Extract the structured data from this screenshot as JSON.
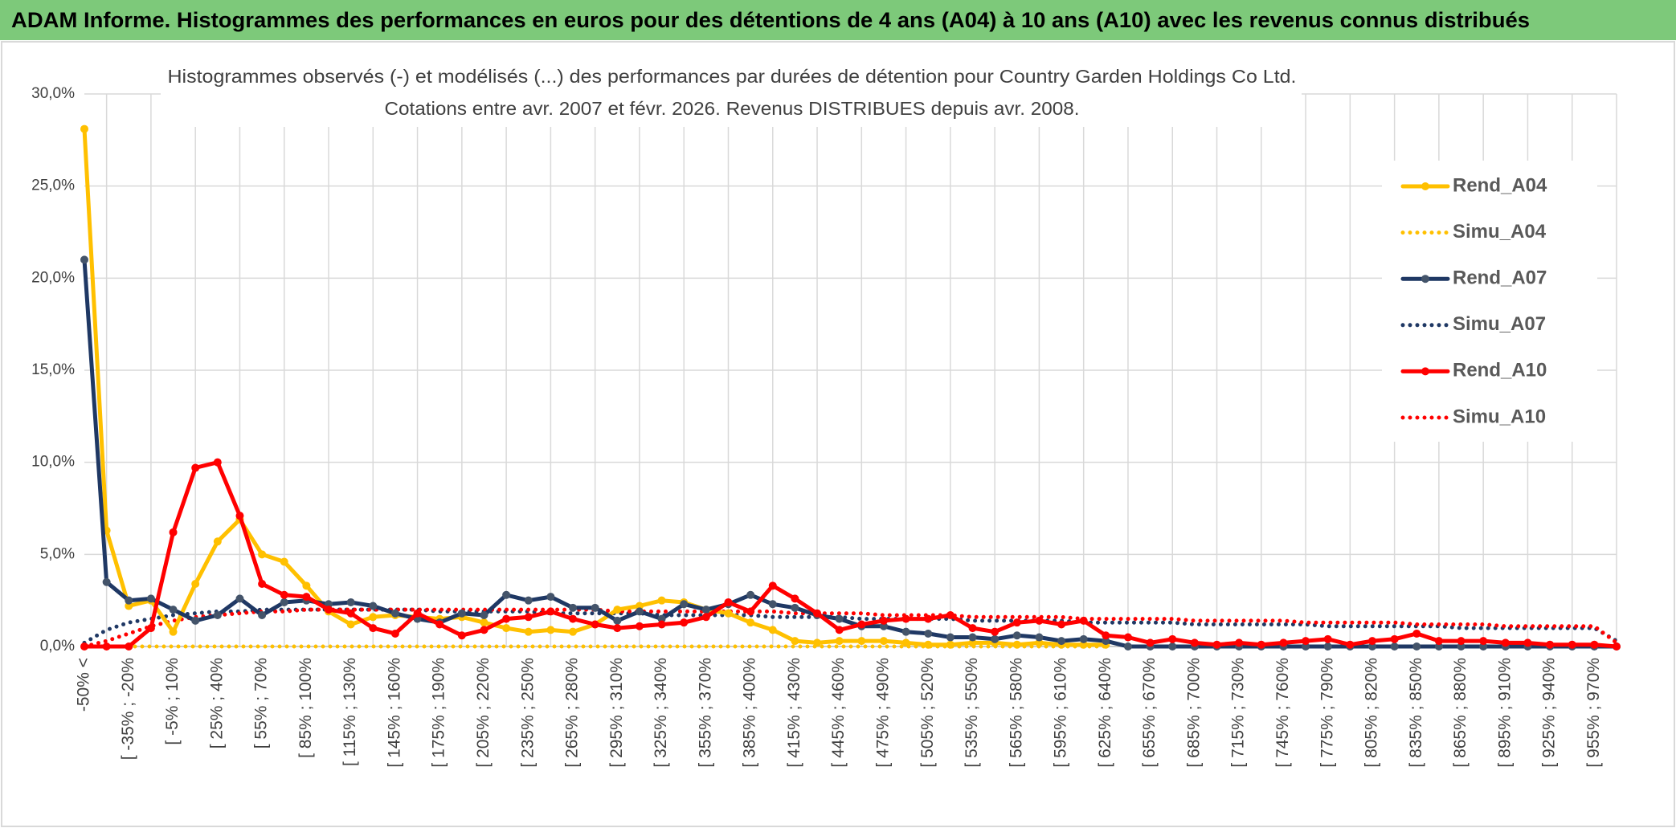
{
  "header": {
    "title": "ADAM Informe. Histogrammes des performances en euros pour des détentions de 4 ans (A04) à 10 ans (A10) avec les revenus connus distribués"
  },
  "chart_data": {
    "type": "line",
    "title": "Histogrammes observés (-) et modélisés (...) des performances par durées de détention pour Country Garden Holdings Co Ltd.",
    "subtitle": "Cotations entre avr. 2007 et févr. 2026. Revenus DISTRIBUES depuis avr. 2008.",
    "categories": [
      "-50% <",
      null,
      "[ -35% ; -20%",
      null,
      "[ -5% ; 10%",
      null,
      "[ 25% ; 40%",
      null,
      "[ 55% ; 70%",
      null,
      "[ 85% ; 100%",
      null,
      "[ 115% ; 130%",
      null,
      "[ 145% ; 160%",
      null,
      "[ 175% ; 190%",
      null,
      "[ 205% ; 220%",
      null,
      "[ 235% ; 250%",
      null,
      "[ 265% ; 280%",
      null,
      "[ 295% ; 310%",
      null,
      "[ 325% ; 340%",
      null,
      "[ 355% ; 370%",
      null,
      "[ 385% ; 400%",
      null,
      "[ 415% ; 430%",
      null,
      "[ 445% ; 460%",
      null,
      "[ 475% ; 490%",
      null,
      "[ 505% ; 520%",
      null,
      "[ 535% ; 550%",
      null,
      "[ 565% ; 580%",
      null,
      "[ 595% ; 610%",
      null,
      "[ 625% ; 640%",
      null,
      "[ 655% ; 670%",
      null,
      "[ 685% ; 700%",
      null,
      "[ 715% ; 730%",
      null,
      "[ 745% ; 760%",
      null,
      "[ 775% ; 790%",
      null,
      "[ 805% ; 820%",
      null,
      "[ 835% ; 850%",
      null,
      "[ 865% ; 880%",
      null,
      "[ 895% ; 910%",
      null,
      "[ 925% ; 940%",
      null,
      "[ 955% ; 970%",
      null
    ],
    "ylim": [
      0,
      30
    ],
    "yticks": [
      {
        "value": 0,
        "label": "0,0%"
      },
      {
        "value": 5,
        "label": "5,0%"
      },
      {
        "value": 10,
        "label": "10,0%"
      },
      {
        "value": 15,
        "label": "15,0%"
      },
      {
        "value": 20,
        "label": "20,0%"
      },
      {
        "value": 25,
        "label": "25,0%"
      },
      {
        "value": 30,
        "label": "30,0%"
      }
    ],
    "grid": true,
    "legend": "right",
    "series": [
      {
        "name": "Rend_A04",
        "color": "#ffc000",
        "style": "solid",
        "values": [
          28.1,
          6.3,
          2.2,
          2.5,
          0.8,
          3.4,
          5.7,
          6.9,
          5.0,
          4.6,
          3.3,
          1.9,
          1.2,
          1.6,
          1.7,
          1.6,
          1.5,
          1.6,
          1.3,
          1.0,
          0.8,
          0.9,
          0.8,
          1.2,
          2.0,
          2.2,
          2.5,
          2.4,
          2.0,
          1.8,
          1.3,
          0.9,
          0.3,
          0.2,
          0.3,
          0.3,
          0.3,
          0.2,
          0.1,
          0.1,
          0.2,
          0.2,
          0.1,
          0.2,
          0.1,
          0.1,
          0.1,
          null,
          null,
          null,
          null,
          null,
          null,
          null,
          null,
          null,
          null,
          null,
          null,
          null,
          null,
          null,
          null,
          null,
          null,
          null,
          null,
          null,
          null,
          null
        ]
      },
      {
        "name": "Simu_A04",
        "color": "#ffc000",
        "style": "dotted",
        "values": [
          0,
          0,
          0,
          0,
          0,
          0,
          0,
          0,
          0,
          0,
          0,
          0,
          0,
          0,
          0,
          0,
          0,
          0,
          0,
          0,
          0,
          0,
          0,
          0,
          0,
          0,
          0,
          0,
          0,
          0,
          0,
          0,
          0,
          0,
          0,
          0,
          0,
          0,
          0,
          0,
          0,
          0,
          0,
          0,
          0,
          0,
          0,
          null,
          null,
          null,
          null,
          null,
          null,
          null,
          null,
          null,
          null,
          null,
          null,
          null,
          null,
          null,
          null,
          null,
          null,
          null,
          null,
          null,
          null,
          null
        ]
      },
      {
        "name": "Rend_A07",
        "color": "#1f3864",
        "style": "solid",
        "values": [
          21.0,
          3.5,
          2.5,
          2.6,
          2.0,
          1.4,
          1.7,
          2.6,
          1.7,
          2.4,
          2.5,
          2.3,
          2.4,
          2.2,
          1.8,
          1.5,
          1.3,
          1.8,
          1.7,
          2.8,
          2.5,
          2.7,
          2.1,
          2.1,
          1.4,
          1.9,
          1.5,
          2.3,
          2.0,
          2.3,
          2.8,
          2.3,
          2.1,
          1.7,
          1.5,
          1.1,
          1.1,
          0.8,
          0.7,
          0.5,
          0.5,
          0.4,
          0.6,
          0.5,
          0.3,
          0.4,
          0.3,
          0,
          0,
          0,
          0,
          0,
          0,
          0,
          0,
          0,
          0,
          0,
          0,
          0,
          0,
          0,
          0,
          0,
          0,
          0,
          0,
          0,
          0,
          0
        ]
      },
      {
        "name": "Simu_A07",
        "color": "#1f3864",
        "style": "dotted",
        "values": [
          0.2,
          0.9,
          1.3,
          1.5,
          1.7,
          1.8,
          1.9,
          1.9,
          2.0,
          2.0,
          2.0,
          2.0,
          2.0,
          2.0,
          2.0,
          2.0,
          1.9,
          1.9,
          1.9,
          1.9,
          1.9,
          1.8,
          1.8,
          1.8,
          1.8,
          1.8,
          1.7,
          1.7,
          1.7,
          1.7,
          1.7,
          1.6,
          1.6,
          1.6,
          1.6,
          1.5,
          1.5,
          1.5,
          1.5,
          1.5,
          1.4,
          1.4,
          1.4,
          1.4,
          1.4,
          1.3,
          1.3,
          1.3,
          1.3,
          1.3,
          1.2,
          1.2,
          1.2,
          1.2,
          1.2,
          1.2,
          1.1,
          1.1,
          1.1,
          1.1,
          1.1,
          1.1,
          1.0,
          1.0,
          1.0,
          1.0,
          1.0,
          1.0,
          1.0,
          0.3
        ]
      },
      {
        "name": "Rend_A10",
        "color": "#ff0000",
        "style": "solid",
        "values": [
          0,
          0,
          0,
          1.0,
          6.2,
          9.7,
          10.0,
          7.1,
          3.4,
          2.8,
          2.7,
          2.0,
          1.8,
          1.0,
          0.7,
          1.8,
          1.2,
          0.6,
          0.9,
          1.5,
          1.6,
          1.9,
          1.5,
          1.2,
          1.0,
          1.1,
          1.2,
          1.3,
          1.6,
          2.4,
          1.9,
          3.3,
          2.6,
          1.8,
          0.9,
          1.2,
          1.4,
          1.5,
          1.5,
          1.7,
          1.0,
          0.8,
          1.3,
          1.4,
          1.2,
          1.4,
          0.6,
          0.5,
          0.2,
          0.4,
          0.2,
          0.1,
          0.2,
          0.1,
          0.2,
          0.3,
          0.4,
          0.1,
          0.3,
          0.4,
          0.7,
          0.3,
          0.3,
          0.3,
          0.2,
          0.2,
          0.1,
          0.1,
          0.1,
          0
        ]
      },
      {
        "name": "Simu_A10",
        "color": "#ff0000",
        "style": "dotted",
        "values": [
          0,
          0.3,
          0.7,
          1.1,
          1.4,
          1.6,
          1.7,
          1.8,
          1.9,
          1.9,
          2.0,
          2.0,
          2.0,
          2.0,
          2.0,
          2.0,
          2.0,
          2.0,
          2.0,
          2.0,
          2.0,
          2.0,
          2.0,
          2.0,
          1.9,
          1.9,
          1.9,
          1.9,
          1.9,
          1.9,
          1.9,
          1.9,
          1.8,
          1.8,
          1.8,
          1.8,
          1.7,
          1.7,
          1.7,
          1.7,
          1.6,
          1.6,
          1.6,
          1.6,
          1.6,
          1.5,
          1.5,
          1.5,
          1.5,
          1.5,
          1.4,
          1.4,
          1.4,
          1.4,
          1.4,
          1.3,
          1.3,
          1.3,
          1.3,
          1.3,
          1.2,
          1.2,
          1.2,
          1.2,
          1.1,
          1.1,
          1.1,
          1.1,
          1.1,
          0.2
        ]
      }
    ]
  }
}
